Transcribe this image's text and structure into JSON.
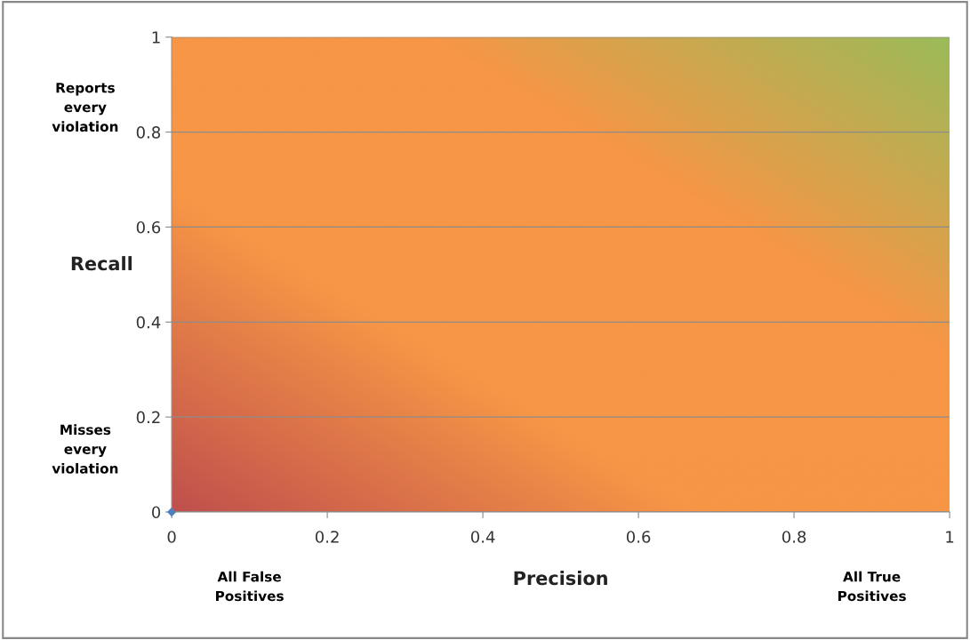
{
  "chart_data": {
    "type": "scatter",
    "xlabel": "Precision",
    "ylabel": "Recall",
    "x": [
      0
    ],
    "values": [
      0
    ],
    "color": "#4f81bd",
    "marker": "diamond",
    "xlim": [
      0,
      1
    ],
    "ylim": [
      0,
      1
    ],
    "xticks": [
      0,
      0.2,
      0.4,
      0.6,
      0.8,
      1
    ],
    "yticks": [
      0,
      0.2,
      0.4,
      0.6,
      0.8,
      1
    ],
    "grid": "y",
    "legend": false,
    "annotations": [
      "Reports\nevery\nviolation",
      "Misses\nevery\nviolation",
      "All False\nPositives",
      "All True\nPositives"
    ]
  }
}
